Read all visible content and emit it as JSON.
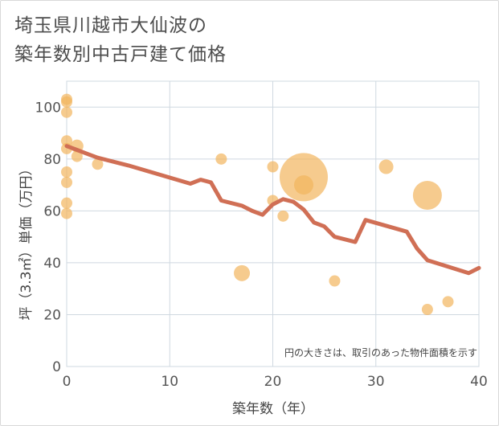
{
  "title_line1": "埼玉県川越市大仙波の",
  "title_line2": "築年数別中古戸建て価格",
  "chart_data": {
    "type": "scatter",
    "title": "埼玉県川越市大仙波の築年数別中古戸建て価格",
    "xlabel": "築年数（年）",
    "ylabel": "坪（3.3㎡）単価（万円）",
    "xlim": [
      0,
      40
    ],
    "ylim": [
      0,
      110
    ],
    "xticks": [
      0,
      10,
      20,
      30,
      40
    ],
    "yticks": [
      0,
      20,
      40,
      60,
      80,
      100
    ],
    "grid": true,
    "note": "円の大きさは、取引のあった物件面積を示す",
    "colors": {
      "bubble": "#f2b55e",
      "line": "#d06f55",
      "grid": "#cfd8e0"
    },
    "bubbles": [
      {
        "x": 0,
        "y": 103,
        "r": 7
      },
      {
        "x": 0,
        "y": 102,
        "r": 7
      },
      {
        "x": 0,
        "y": 98,
        "r": 7
      },
      {
        "x": 0,
        "y": 87,
        "r": 7
      },
      {
        "x": 0,
        "y": 84,
        "r": 7
      },
      {
        "x": 0,
        "y": 75,
        "r": 7
      },
      {
        "x": 0,
        "y": 71,
        "r": 7
      },
      {
        "x": 0,
        "y": 63,
        "r": 7
      },
      {
        "x": 0,
        "y": 59,
        "r": 7
      },
      {
        "x": 1,
        "y": 85,
        "r": 8
      },
      {
        "x": 1,
        "y": 81,
        "r": 7
      },
      {
        "x": 3,
        "y": 78,
        "r": 7
      },
      {
        "x": 15,
        "y": 80,
        "r": 7
      },
      {
        "x": 17,
        "y": 36,
        "r": 10
      },
      {
        "x": 20,
        "y": 77,
        "r": 7
      },
      {
        "x": 20,
        "y": 64,
        "r": 7
      },
      {
        "x": 21,
        "y": 58,
        "r": 7
      },
      {
        "x": 23,
        "y": 73,
        "r": 30
      },
      {
        "x": 23,
        "y": 70,
        "r": 12
      },
      {
        "x": 26,
        "y": 33,
        "r": 7
      },
      {
        "x": 31,
        "y": 77,
        "r": 9
      },
      {
        "x": 35,
        "y": 66,
        "r": 18
      },
      {
        "x": 35,
        "y": 22,
        "r": 7
      },
      {
        "x": 37,
        "y": 25,
        "r": 7
      }
    ],
    "trend": [
      {
        "x": 0,
        "y": 85
      },
      {
        "x": 1,
        "y": 83.5
      },
      {
        "x": 2,
        "y": 82
      },
      {
        "x": 3,
        "y": 80.5
      },
      {
        "x": 4,
        "y": 79.5
      },
      {
        "x": 5,
        "y": 78.5
      },
      {
        "x": 6,
        "y": 77.5
      },
      {
        "x": 12,
        "y": 70.5
      },
      {
        "x": 13,
        "y": 72
      },
      {
        "x": 14,
        "y": 71
      },
      {
        "x": 15,
        "y": 64
      },
      {
        "x": 17,
        "y": 62
      },
      {
        "x": 18,
        "y": 60
      },
      {
        "x": 19,
        "y": 58.5
      },
      {
        "x": 20,
        "y": 62.5
      },
      {
        "x": 21,
        "y": 64.5
      },
      {
        "x": 22,
        "y": 63.5
      },
      {
        "x": 23,
        "y": 60.5
      },
      {
        "x": 24,
        "y": 55.5
      },
      {
        "x": 25,
        "y": 54
      },
      {
        "x": 26,
        "y": 50
      },
      {
        "x": 28,
        "y": 48
      },
      {
        "x": 29,
        "y": 56.5
      },
      {
        "x": 33,
        "y": 52
      },
      {
        "x": 34,
        "y": 45.5
      },
      {
        "x": 35,
        "y": 41
      },
      {
        "x": 39,
        "y": 36
      },
      {
        "x": 40,
        "y": 38
      }
    ]
  }
}
